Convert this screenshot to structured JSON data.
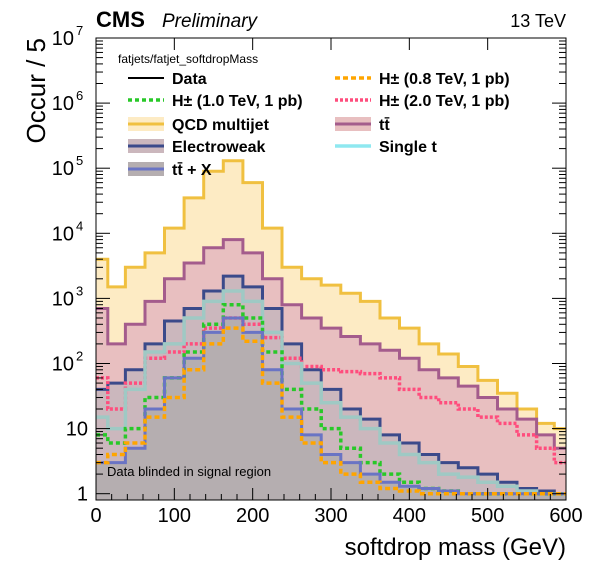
{
  "header": {
    "experiment": "CMS",
    "status": "Preliminary",
    "energy": "13 TeV"
  },
  "chart_data": {
    "type": "area",
    "title": "",
    "xlabel": "softdrop mass (GeV)",
    "ylabel": "Occur / 5",
    "xlim": [
      0,
      600
    ],
    "ylim": [
      0.8,
      10000000
    ],
    "log_y": true,
    "x_ticks": [
      "0",
      "100",
      "200",
      "300",
      "400",
      "500",
      "600"
    ],
    "y_ticks": [
      {
        "value": 1,
        "label": "1"
      },
      {
        "value": 10,
        "label": "10"
      },
      {
        "value": 100,
        "label": "10",
        "exp": "2"
      },
      {
        "value": 1000,
        "label": "10",
        "exp": "3"
      },
      {
        "value": 10000,
        "label": "10",
        "exp": "4"
      },
      {
        "value": 100000,
        "label": "10",
        "exp": "5"
      },
      {
        "value": 1000000,
        "label": "10",
        "exp": "6"
      },
      {
        "value": 10000000,
        "label": "10",
        "exp": "7"
      }
    ],
    "legend_header": "fatjets/fatjet_softdropMass",
    "legend": [
      {
        "label": "Data",
        "key": "data"
      },
      {
        "label": "H± (0.8 TeV, 1 pb)",
        "key": "sig08"
      },
      {
        "label": "H± (1.0 TeV, 1 pb)",
        "key": "sig10"
      },
      {
        "label": "H± (2.0 TeV, 1 pb)",
        "key": "sig20"
      },
      {
        "label": "QCD multijet",
        "key": "qcd"
      },
      {
        "label": "tt̄",
        "key": "ttbar"
      },
      {
        "label": "Electroweak",
        "key": "ewk"
      },
      {
        "label": "Single t",
        "key": "st"
      },
      {
        "label": "tt̄ + X",
        "key": "ttx"
      }
    ],
    "annotation": "Data blinded in signal region",
    "x": [
      5,
      25,
      50,
      75,
      100,
      125,
      150,
      175,
      200,
      225,
      250,
      275,
      300,
      325,
      350,
      375,
      400,
      425,
      450,
      475,
      500,
      525,
      550,
      575,
      595
    ],
    "series": [
      {
        "key": "qcd",
        "color": "#f0c040",
        "fill": "#fdebc4",
        "values": [
          4000,
          1500,
          3000,
          5000,
          12000,
          35000,
          90000,
          130000,
          60000,
          12000,
          3000,
          2000,
          1600,
          1200,
          900,
          500,
          350,
          200,
          140,
          90,
          55,
          35,
          20,
          12,
          10
        ]
      },
      {
        "key": "ttbar",
        "color": "#a45c8c",
        "fill": "#e8bfc0",
        "values": [
          700,
          200,
          400,
          900,
          2000,
          3500,
          6000,
          8000,
          5000,
          2000,
          800,
          500,
          350,
          260,
          200,
          160,
          120,
          80,
          60,
          45,
          30,
          20,
          14,
          8,
          5
        ]
      },
      {
        "key": "ewk",
        "color": "#3b4a8a",
        "fill": "#cbb7bd",
        "values": [
          40,
          50,
          80,
          200,
          450,
          700,
          1300,
          2200,
          1500,
          700,
          200,
          80,
          40,
          20,
          14,
          8,
          6,
          4,
          3,
          2.5,
          2,
          1.5,
          1.2,
          1.1,
          1
        ]
      },
      {
        "key": "sig20",
        "color": "#ff4d7d",
        "fill": null,
        "values": [
          60,
          20,
          50,
          120,
          150,
          200,
          350,
          500,
          400,
          250,
          120,
          90,
          80,
          75,
          70,
          60,
          40,
          30,
          25,
          20,
          15,
          12,
          8,
          5,
          3
        ]
      },
      {
        "key": "st",
        "color": "#9fc9c4",
        "fill": null,
        "values": [
          15,
          10,
          40,
          150,
          200,
          500,
          900,
          1300,
          900,
          300,
          100,
          50,
          25,
          15,
          10,
          6,
          4,
          3,
          2,
          1.8,
          1.5,
          1.3,
          1.1,
          1,
          1
        ]
      },
      {
        "key": "sig10",
        "color": "#28c828",
        "fill": null,
        "values": [
          8,
          6,
          10,
          30,
          60,
          150,
          400,
          800,
          500,
          150,
          40,
          20,
          10,
          5,
          3,
          2,
          1.5,
          1.2,
          1.1,
          1,
          1,
          1,
          1,
          1,
          1
        ]
      },
      {
        "key": "ttx",
        "color": "#6a74c4",
        "fill": "#b5aeb0",
        "values": [
          3,
          3,
          5,
          20,
          60,
          120,
          300,
          500,
          300,
          80,
          20,
          8,
          4,
          3,
          2,
          1.5,
          1.3,
          1.2,
          1.1,
          1,
          1,
          1,
          1,
          1,
          1
        ]
      },
      {
        "key": "sig08",
        "color": "#ffa500",
        "fill": null,
        "values": [
          3,
          4,
          6,
          15,
          30,
          80,
          200,
          350,
          220,
          50,
          15,
          6,
          3,
          2,
          1.5,
          1.2,
          1.1,
          1,
          1,
          1,
          1,
          1,
          1,
          1,
          1
        ]
      }
    ]
  }
}
